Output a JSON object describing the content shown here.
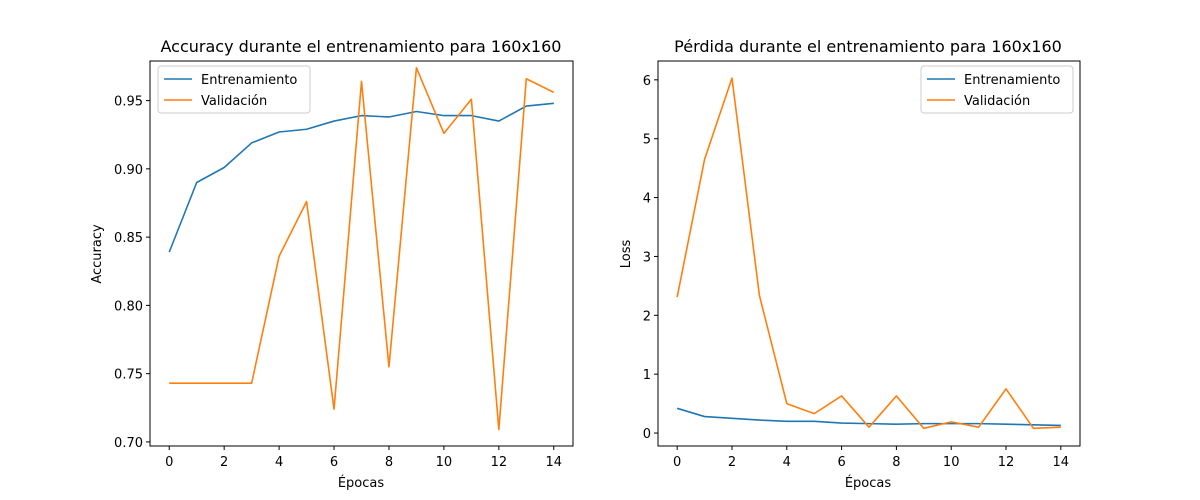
{
  "colors": {
    "train": "#1f77b4",
    "val": "#ff7f0e"
  },
  "chart_data": [
    {
      "type": "line",
      "title": "Accuracy durante el entrenamiento para 160x160",
      "xlabel": "Épocas",
      "ylabel": "Accuracy",
      "x": [
        0,
        1,
        2,
        3,
        4,
        5,
        6,
        7,
        8,
        9,
        10,
        11,
        12,
        13,
        14
      ],
      "xticks": [
        "0",
        "2",
        "4",
        "6",
        "8",
        "10",
        "12",
        "14"
      ],
      "yticks": [
        "0.70",
        "0.75",
        "0.80",
        "0.85",
        "0.90",
        "0.95"
      ],
      "xlim": [
        -0.7,
        14.7
      ],
      "ylim": [
        0.697,
        0.979
      ],
      "legend": "upper-left",
      "series": [
        {
          "name": "Entrenamiento",
          "values": [
            0.839,
            0.89,
            0.901,
            0.919,
            0.927,
            0.929,
            0.935,
            0.939,
            0.938,
            0.942,
            0.939,
            0.939,
            0.935,
            0.946,
            0.948
          ]
        },
        {
          "name": "Validación",
          "values": [
            0.743,
            0.743,
            0.743,
            0.743,
            0.836,
            0.876,
            0.724,
            0.964,
            0.755,
            0.974,
            0.926,
            0.951,
            0.709,
            0.966,
            0.956
          ]
        }
      ]
    },
    {
      "type": "line",
      "title": "Pérdida durante el entrenamiento para 160x160",
      "xlabel": "Épocas",
      "ylabel": "Loss",
      "x": [
        0,
        1,
        2,
        3,
        4,
        5,
        6,
        7,
        8,
        9,
        10,
        11,
        12,
        13,
        14
      ],
      "xticks": [
        "0",
        "2",
        "4",
        "6",
        "8",
        "10",
        "12",
        "14"
      ],
      "yticks": [
        "0",
        "1",
        "2",
        "3",
        "4",
        "5",
        "6"
      ],
      "xlim": [
        -0.7,
        14.7
      ],
      "ylim": [
        -0.22,
        6.32
      ],
      "legend": "upper-right",
      "series": [
        {
          "name": "Entrenamiento",
          "values": [
            0.42,
            0.28,
            0.25,
            0.22,
            0.2,
            0.2,
            0.17,
            0.16,
            0.15,
            0.16,
            0.16,
            0.16,
            0.15,
            0.14,
            0.13
          ]
        },
        {
          "name": "Validación",
          "values": [
            2.31,
            4.65,
            6.03,
            2.34,
            0.5,
            0.33,
            0.63,
            0.1,
            0.63,
            0.08,
            0.19,
            0.1,
            0.75,
            0.08,
            0.1
          ]
        }
      ]
    }
  ]
}
